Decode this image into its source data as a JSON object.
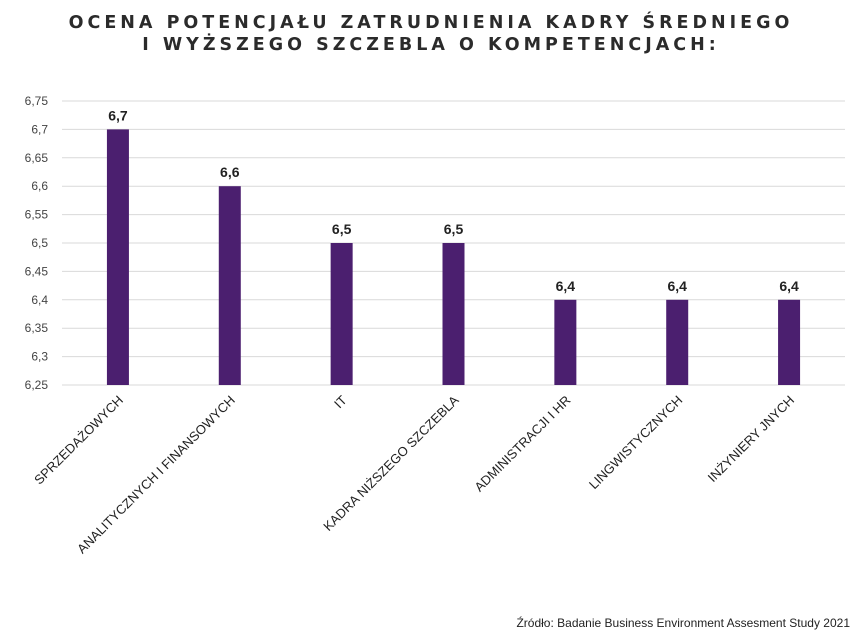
{
  "chart_data": {
    "type": "bar",
    "title_lines": [
      "OCENA POTENCJAŁU ZATRUDNIENIA KADRY ŚREDNIEGO",
      "I WYŻSZEGO SZCZEBLA O KOMPETENCJACH:"
    ],
    "categories": [
      "SPRZEDAŻOWYCH",
      "ANALITYCZNYCH I FINANSOWYCH",
      "IT",
      "KADRA NIŻSZEGO SZCZEBLA",
      "ADMINISTRACJI I HR",
      "LINGWISTYCZNYCH",
      "INŻYNIERY JNYCH"
    ],
    "values": [
      6.7,
      6.6,
      6.5,
      6.5,
      6.4,
      6.4,
      6.4
    ],
    "value_labels": [
      "6,7",
      "6,6",
      "6,5",
      "6,5",
      "6,4",
      "6,4",
      "6,4"
    ],
    "y_ticks": [
      "6,25",
      "6,3",
      "6,35",
      "6,4",
      "6,45",
      "6,5",
      "6,55",
      "6,6",
      "6,65",
      "6,7",
      "6,75"
    ],
    "ylim": [
      6.25,
      6.75
    ],
    "grid": true,
    "legend": "none",
    "bar_color": "#4b1f6f",
    "grid_color": "#d9d9d9"
  },
  "source": "Źródło: Badanie Business Environment Assesment Study 2021"
}
